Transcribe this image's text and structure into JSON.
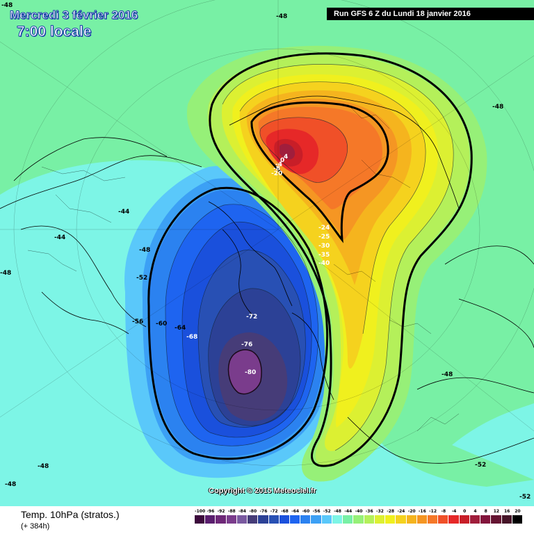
{
  "header": {
    "date": "Mercredi 3 février 2016",
    "time": "7:00 locale",
    "run": "Run GFS 6 Z du Lundi 18 janvier 2016"
  },
  "copyright": "Copyright © 2015 Meteociel.fr",
  "footer": {
    "field": "Temp. 10hPa (stratos.)",
    "lead": "(+ 384h)"
  },
  "legend": {
    "labels": [
      "-100",
      "-96",
      "-92",
      "-88",
      "-84",
      "-80",
      "-76",
      "-72",
      "-68",
      "-64",
      "-60",
      "-56",
      "-52",
      "-48",
      "-44",
      "-40",
      "-36",
      "-32",
      "-28",
      "-24",
      "-20",
      "-16",
      "-12",
      "-8",
      "-4",
      "0",
      "4",
      "8",
      "12",
      "16",
      "20"
    ],
    "colors": [
      "#3c0a3c",
      "#5a1e6e",
      "#6e2878",
      "#7a3c8c",
      "#7a5aa0",
      "#463c78",
      "#2c4196",
      "#2850b4",
      "#1a50dc",
      "#1e64f0",
      "#2b82f0",
      "#3ca0f5",
      "#5ac8fa",
      "#7df5e6",
      "#78f0a5",
      "#96f078",
      "#b4f05a",
      "#dcf032",
      "#f0f01e",
      "#f5d21e",
      "#f5b41e",
      "#f59623",
      "#f57828",
      "#f05028",
      "#e62828",
      "#c81e28",
      "#a01e3c",
      "#82143c",
      "#641432",
      "#461428",
      "#000000"
    ]
  },
  "map_labels": [
    "-48",
    "-48",
    "-48",
    "-48",
    "-44",
    "-44",
    "-48",
    "-52",
    "-56",
    "-60",
    "-64",
    "-68",
    "-72",
    "-76",
    "-80",
    "-48",
    "-52",
    "-48",
    "-52",
    "-48",
    "4",
    "0",
    "-4",
    "-8",
    "-20",
    "-24",
    "-25",
    "-30",
    "-35",
    "-40"
  ],
  "palette": {
    "background": "#78f0a5",
    "cyan": "#7df5e6",
    "light-blue": "#5ac8fa",
    "coastline": "#000000",
    "title": "#1a3fa8"
  }
}
